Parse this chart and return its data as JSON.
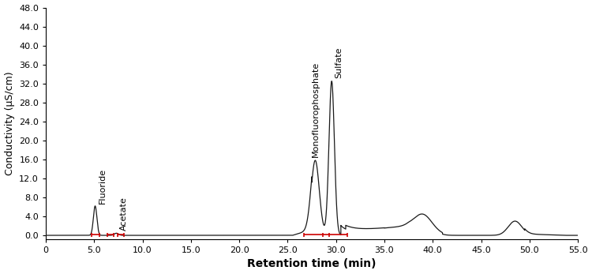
{
  "title": "",
  "xlabel": "Retention time (min)",
  "ylabel": "Conductivity (μS/cm)",
  "xlim": [
    0,
    55.0
  ],
  "ylim": [
    0,
    48.0
  ],
  "yticks": [
    0.0,
    4.0,
    8.0,
    12.0,
    16.0,
    20.0,
    24.0,
    28.0,
    32.0,
    36.0,
    40.0,
    44.0,
    48.0
  ],
  "xticks": [
    0,
    5.0,
    10.0,
    15.0,
    20.0,
    25.0,
    30.0,
    35.0,
    40.0,
    45.0,
    50.0,
    55.0
  ],
  "line_color": "#1a1a1a",
  "red_color": "#cc0000",
  "background_color": "#ffffff",
  "fluoride_rt": 5.1,
  "fluoride_height": 6.2,
  "fluoride_sigma": 0.18,
  "acetate_rt": 7.3,
  "acetate_height": 0.45,
  "acetate_sigma": 0.22,
  "mfp_rt": 27.85,
  "mfp_height": 15.8,
  "mfp_sigma": 0.42,
  "sulfate_rt": 29.55,
  "sulfate_height": 32.5,
  "sulfate_sigma": 0.28,
  "hump_rt": 39.0,
  "hump_height": 3.2,
  "hump_sigma": 0.9,
  "step_rt": 48.5,
  "step_height": 3.0,
  "step_sigma": 0.7,
  "label_fontsize": 8.0,
  "axis_fontsize": 9,
  "xlabel_fontsize": 10
}
